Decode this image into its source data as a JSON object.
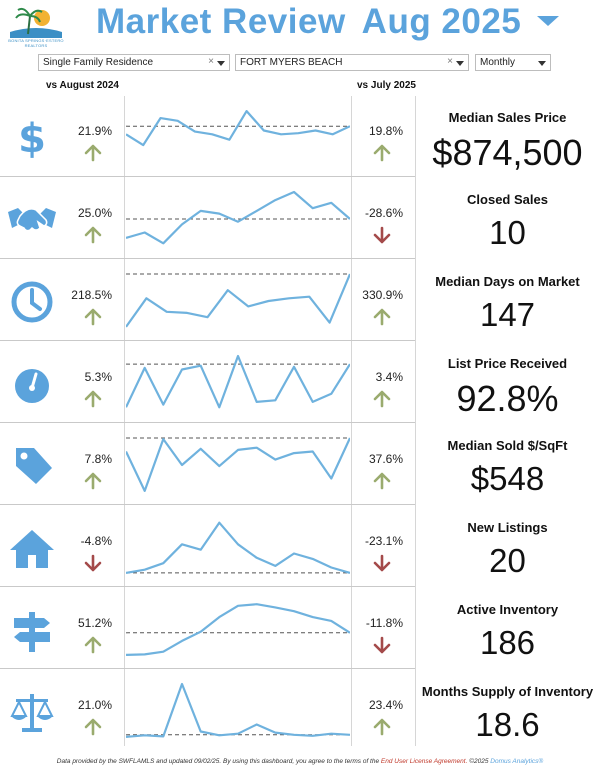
{
  "header": {
    "logo_text": "BONITA SPRINGS·ESTERO REALTORS",
    "title_left": "Market Review",
    "title_right": "Aug 2025"
  },
  "filters": {
    "property_type": "Single Family Residence",
    "location": "FORT MYERS BEACH",
    "period": "Monthly"
  },
  "columns": {
    "left": "vs August 2024",
    "right": "vs July 2025"
  },
  "colors": {
    "accent": "#5ba3dc",
    "up": "#9aab6e",
    "down": "#a44a4a",
    "line": "#6fb2de"
  },
  "metrics": [
    {
      "name": "Median Sales Price",
      "value": "$874,500",
      "yoy": "21.9%",
      "yoy_dir": "up",
      "mom": "19.8%",
      "mom_dir": "up",
      "icon": "dollar-icon",
      "spark": [
        0.55,
        0.35,
        0.85,
        0.8,
        0.6,
        0.55,
        0.45,
        0.98,
        0.62,
        0.55,
        0.57,
        0.62,
        0.55,
        0.7
      ]
    },
    {
      "name": "Closed Sales",
      "value": "10",
      "yoy": "25.0%",
      "yoy_dir": "up",
      "mom": "-28.6%",
      "mom_dir": "down",
      "icon": "handshake-icon",
      "spark": [
        0.15,
        0.25,
        0.05,
        0.4,
        0.65,
        0.6,
        0.45,
        0.65,
        0.85,
        1.0,
        0.7,
        0.8,
        0.5
      ]
    },
    {
      "name": "Median Days on Market",
      "value": "147",
      "yoy": "218.5%",
      "yoy_dir": "up",
      "mom": "330.9%",
      "mom_dir": "up",
      "icon": "clock-icon",
      "spark": [
        0.02,
        0.55,
        0.3,
        0.28,
        0.2,
        0.7,
        0.4,
        0.5,
        0.55,
        0.58,
        0.1,
        1.0
      ]
    },
    {
      "name": "List Price Received",
      "value": "92.8%",
      "yoy": "5.3%",
      "yoy_dir": "up",
      "mom": "3.4%",
      "mom_dir": "up",
      "icon": "gauge-icon",
      "spark": [
        0.05,
        0.78,
        0.1,
        0.75,
        0.82,
        0.05,
        1.0,
        0.15,
        0.18,
        0.8,
        0.15,
        0.3,
        0.85
      ]
    },
    {
      "name": "Median Sold $/SqFt",
      "value": "$548",
      "yoy": "7.8%",
      "yoy_dir": "up",
      "mom": "37.6%",
      "mom_dir": "up",
      "icon": "price-tag-icon",
      "spark": [
        0.75,
        0.02,
        0.98,
        0.5,
        0.8,
        0.48,
        0.78,
        0.82,
        0.6,
        0.72,
        0.75,
        0.25,
        1.0
      ]
    },
    {
      "name": "New Listings",
      "value": "20",
      "yoy": "-4.8%",
      "yoy_dir": "down",
      "mom": "-23.1%",
      "mom_dir": "down",
      "icon": "house-icon",
      "spark": [
        0.02,
        0.08,
        0.2,
        0.55,
        0.45,
        0.95,
        0.55,
        0.3,
        0.15,
        0.38,
        0.28,
        0.12,
        0.02
      ]
    },
    {
      "name": "Active Inventory",
      "value": "186",
      "yoy": "51.2%",
      "yoy_dir": "up",
      "mom": "-11.8%",
      "mom_dir": "down",
      "icon": "signpost-icon",
      "spark": [
        0.02,
        0.03,
        0.08,
        0.28,
        0.45,
        0.72,
        0.93,
        0.96,
        0.9,
        0.83,
        0.72,
        0.65,
        0.43
      ]
    },
    {
      "name": "Months Supply of Inventory",
      "value": "18.6",
      "yoy": "21.0%",
      "yoy_dir": "up",
      "mom": "23.4%",
      "mom_dir": "up",
      "icon": "scales-icon",
      "spark": [
        0.02,
        0.05,
        0.03,
        1.0,
        0.12,
        0.05,
        0.08,
        0.25,
        0.1,
        0.06,
        0.04,
        0.08,
        0.06
      ]
    }
  ],
  "footer": {
    "text": "Data provided by the SWFLAMLS and updated 09/02/25.  By using this dashboard, you agree to the terms of the",
    "link": "End User License Agreement.",
    "copyright": "©2025",
    "brand": "Domus Analytics®"
  }
}
